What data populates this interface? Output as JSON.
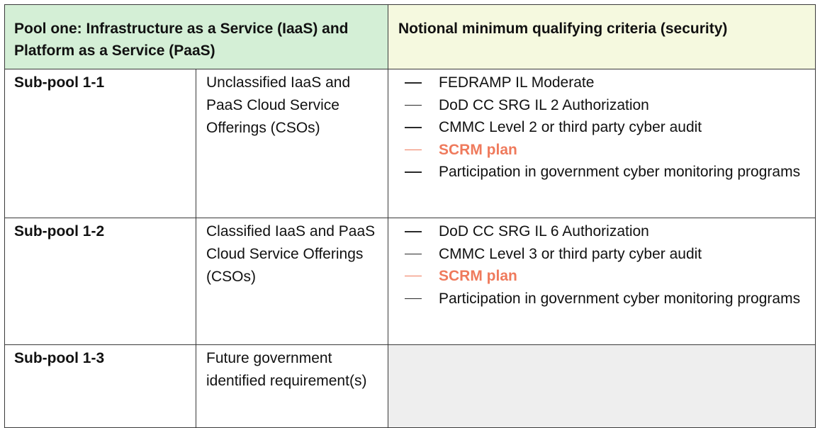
{
  "header": {
    "pool_title": "Pool one: Infrastructure as a Service (IaaS) and Platform as a Service (PaaS)",
    "criteria_title": "Notional minimum qualifying criteria (security)"
  },
  "colors": {
    "header_left_bg": "#d4efd6",
    "header_right_bg": "#f5f9df",
    "highlight_text": "#ef7a5c",
    "empty_cell_bg": "#eeeeee"
  },
  "rows": [
    {
      "name": "Sub-pool 1-1",
      "description": "Unclassified IaaS and PaaS Cloud Service Offerings (CSOs)",
      "criteria": [
        {
          "text": "FEDRAMP IL Moderate",
          "highlight": false
        },
        {
          "text": "DoD CC SRG IL 2 Authorization",
          "highlight": false
        },
        {
          "text": "CMMC Level 2 or third party cyber audit",
          "highlight": false
        },
        {
          "text": "SCRM plan",
          "highlight": true
        },
        {
          "text": "Participation in government cyber monitoring programs",
          "highlight": false
        }
      ]
    },
    {
      "name": "Sub-pool 1-2",
      "description": "Classified IaaS and PaaS Cloud Service Offerings (CSOs)",
      "criteria": [
        {
          "text": "DoD CC SRG IL 6 Authorization",
          "highlight": false
        },
        {
          "text": "CMMC Level 3 or third party cyber audit",
          "highlight": false
        },
        {
          "text": "SCRM plan",
          "highlight": true
        },
        {
          "text": "Participation in government cyber monitoring programs",
          "highlight": false
        }
      ]
    },
    {
      "name": "Sub-pool 1-3",
      "description": "Future government identified requirement(s)",
      "criteria": []
    }
  ]
}
